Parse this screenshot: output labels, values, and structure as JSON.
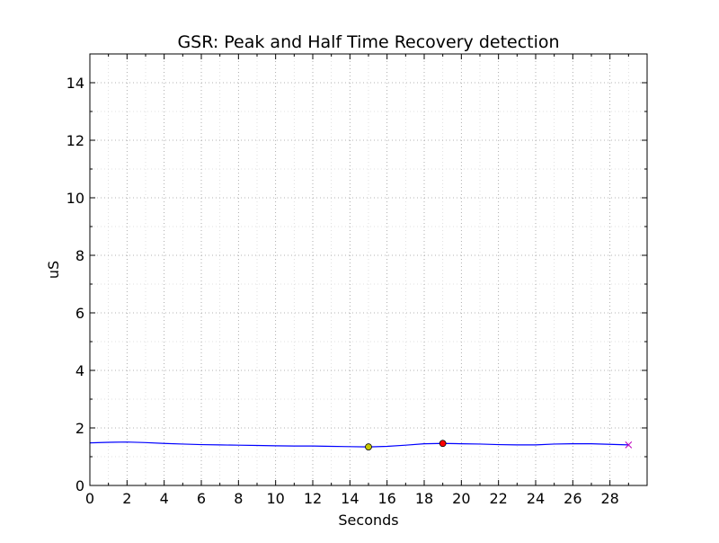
{
  "chart_data": {
    "type": "line",
    "title": "GSR: Peak and Half Time Recovery detection",
    "xlabel": "Seconds",
    "ylabel": "uS",
    "xlim": [
      0,
      30
    ],
    "ylim": [
      0,
      15
    ],
    "xticks": [
      "0",
      "2",
      "4",
      "6",
      "8",
      "10",
      "12",
      "14",
      "16",
      "18",
      "20",
      "22",
      "24",
      "26",
      "28"
    ],
    "yticks": [
      "0",
      "2",
      "4",
      "6",
      "8",
      "10",
      "12",
      "14"
    ],
    "grid": true,
    "grid_minor": true,
    "legend": "none",
    "series": [
      {
        "kind": "line",
        "color": "#0000ff",
        "x": [
          0,
          1,
          2,
          3,
          4,
          5,
          6,
          7,
          8,
          9,
          10,
          11,
          12,
          13,
          14,
          15,
          16,
          17,
          18,
          19,
          20,
          21,
          22,
          23,
          24,
          25,
          26,
          27,
          28,
          29
        ],
        "y": [
          1.48,
          1.5,
          1.51,
          1.49,
          1.46,
          1.44,
          1.42,
          1.41,
          1.4,
          1.39,
          1.38,
          1.37,
          1.37,
          1.36,
          1.35,
          1.34,
          1.36,
          1.4,
          1.45,
          1.46,
          1.45,
          1.44,
          1.42,
          1.41,
          1.41,
          1.44,
          1.45,
          1.45,
          1.43,
          1.41
        ]
      }
    ],
    "markers": [
      {
        "kind": "onset",
        "shape": "circle",
        "color": "#c8c800",
        "x": 15,
        "y": 1.34
      },
      {
        "kind": "peak",
        "shape": "circle",
        "color": "#ff0000",
        "x": 19,
        "y": 1.46
      },
      {
        "kind": "half-recovery",
        "shape": "x",
        "color": "#bf00bf",
        "x": 29,
        "y": 1.41
      }
    ]
  }
}
